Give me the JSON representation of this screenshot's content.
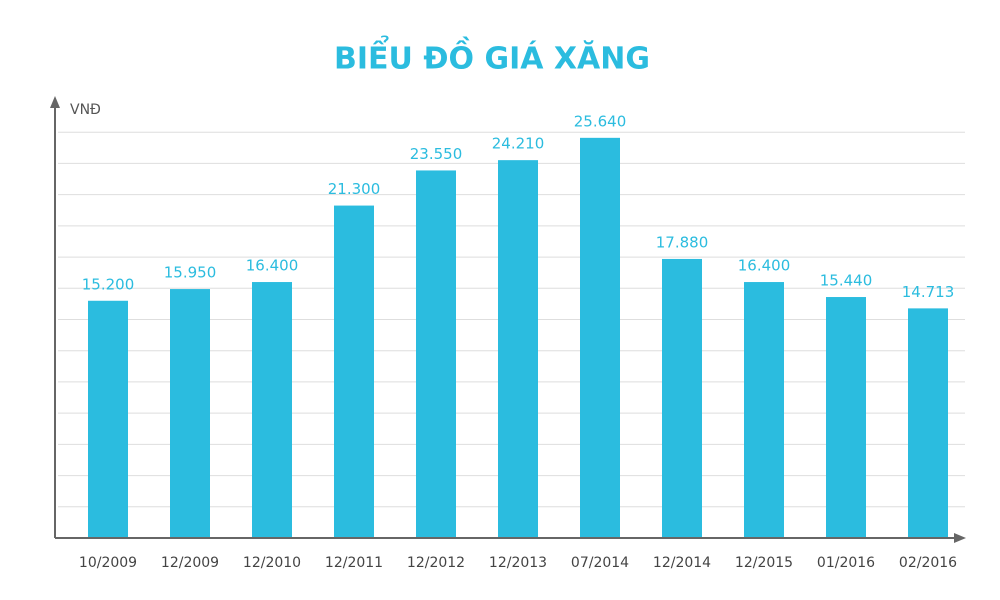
{
  "chart_data": {
    "type": "bar",
    "title": "BIỂU ĐỒ GIÁ XĂNG",
    "y_label": "VNĐ",
    "categories": [
      "10/2009",
      "12/2009",
      "12/2010",
      "12/2011",
      "12/2012",
      "12/2013",
      "07/2014",
      "12/2014",
      "12/2015",
      "01/2016",
      "02/2016"
    ],
    "values": [
      15200,
      15950,
      16400,
      21300,
      23550,
      24210,
      25640,
      17880,
      16400,
      15440,
      14713
    ],
    "value_labels": [
      "15.200",
      "15.950",
      "16.400",
      "21.300",
      "23.550",
      "24.210",
      "25.640",
      "17.880",
      "16.400",
      "15.440",
      "14.713"
    ],
    "color": "#2bbcdf",
    "ylim": [
      0,
      28000
    ],
    "yticks": [
      0,
      2000,
      4000,
      6000,
      8000,
      10000,
      12000,
      14000,
      16000,
      18000,
      20000,
      22000,
      24000,
      26000
    ],
    "grid": true
  }
}
